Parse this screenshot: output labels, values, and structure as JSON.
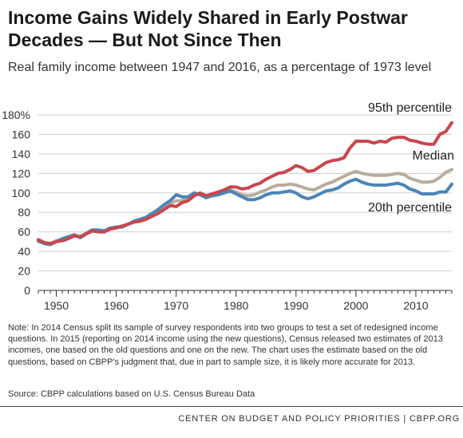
{
  "title": "Income Gains Widely Shared in Early Postwar Decades — But Not Since Then",
  "subtitle": "Real family income between 1947 and 2016, as a percentage of 1973 level",
  "note": "Note: In 2014 Census split its sample of survey respondents into two groups to test a set of redesigned income questions.  In 2015 (reporting on 2014 income using the new questions), Census released two estimates of 2013 incomes, one based on the old questions and one on the new.  The chart uses the estimate based on the old questions, based on CBPP's judgment that, due in part to sample size, it is likely more accurate for 2013.",
  "source": "Source: CBPP calculations based on U.S. Census Bureau Data",
  "footer": "CENTER ON BUDGET AND POLICY PRIORITIES | CBPP.ORG",
  "chart_data": {
    "type": "line",
    "xlim": [
      1947,
      2016
    ],
    "ylim": [
      0,
      180
    ],
    "y_ticks": [
      0,
      20,
      40,
      60,
      80,
      100,
      120,
      140,
      160,
      180
    ],
    "y_tick_labels": [
      "0",
      "20",
      "40",
      "60",
      "80",
      "100",
      "120",
      "140",
      "160",
      "180%"
    ],
    "x_ticks": [
      1950,
      1960,
      1970,
      1980,
      1990,
      2000,
      2010
    ],
    "x_tick_labels": [
      "1950",
      "1960",
      "1970",
      "1980",
      "1990",
      "2000",
      "2010"
    ],
    "grid": true,
    "x": [
      1947,
      1948,
      1949,
      1950,
      1951,
      1952,
      1953,
      1954,
      1955,
      1956,
      1957,
      1958,
      1959,
      1960,
      1961,
      1962,
      1963,
      1964,
      1965,
      1966,
      1967,
      1968,
      1969,
      1970,
      1971,
      1972,
      1973,
      1974,
      1975,
      1976,
      1977,
      1978,
      1979,
      1980,
      1981,
      1982,
      1983,
      1984,
      1985,
      1986,
      1987,
      1988,
      1989,
      1990,
      1991,
      1992,
      1993,
      1994,
      1995,
      1996,
      1997,
      1998,
      1999,
      2000,
      2001,
      2002,
      2003,
      2004,
      2005,
      2006,
      2007,
      2008,
      2009,
      2010,
      2011,
      2012,
      2013,
      2014,
      2015,
      2016
    ],
    "series": [
      {
        "name": "95th percentile",
        "color": "#c8474d",
        "values": [
          52,
          49,
          48,
          50,
          51,
          53,
          56,
          55,
          58,
          61,
          60,
          60,
          63,
          64,
          66,
          68,
          70,
          71,
          73,
          76,
          79,
          83,
          87,
          86,
          90,
          92,
          97,
          100,
          97,
          99,
          101,
          103,
          106,
          106,
          104,
          105,
          108,
          110,
          114,
          117,
          120,
          121,
          124,
          128,
          126,
          122,
          123,
          127,
          131,
          133,
          134,
          136,
          146,
          153,
          153,
          153,
          151,
          153,
          152,
          156,
          157,
          157,
          154,
          153,
          151,
          150,
          150,
          160,
          163,
          172
        ]
      },
      {
        "name": "Median",
        "color": "#b8ad9e",
        "values": [
          50,
          49,
          48,
          51,
          52,
          54,
          57,
          55,
          59,
          62,
          61,
          60,
          63,
          65,
          66,
          68,
          70,
          72,
          74,
          77,
          80,
          85,
          89,
          92,
          92,
          95,
          100,
          98,
          96,
          98,
          99,
          101,
          103,
          101,
          98,
          97,
          98,
          101,
          103,
          106,
          108,
          108,
          109,
          108,
          106,
          104,
          103,
          106,
          109,
          111,
          114,
          117,
          120,
          122,
          120,
          119,
          118,
          118,
          118,
          119,
          120,
          119,
          115,
          113,
          111,
          111,
          112,
          116,
          121,
          124
        ]
      },
      {
        "name": "20th percentile",
        "color": "#4a85b8",
        "values": [
          51,
          48,
          47,
          50,
          53,
          55,
          57,
          54,
          58,
          62,
          62,
          61,
          64,
          65,
          65,
          68,
          71,
          73,
          75,
          79,
          83,
          88,
          92,
          98,
          96,
          96,
          100,
          98,
          95,
          97,
          98,
          100,
          102,
          99,
          96,
          93,
          93,
          95,
          98,
          100,
          100,
          101,
          102,
          100,
          96,
          94,
          96,
          99,
          102,
          103,
          105,
          109,
          112,
          114,
          111,
          109,
          108,
          108,
          108,
          109,
          110,
          108,
          104,
          102,
          99,
          99,
          99,
          101,
          101,
          109
        ]
      }
    ]
  }
}
